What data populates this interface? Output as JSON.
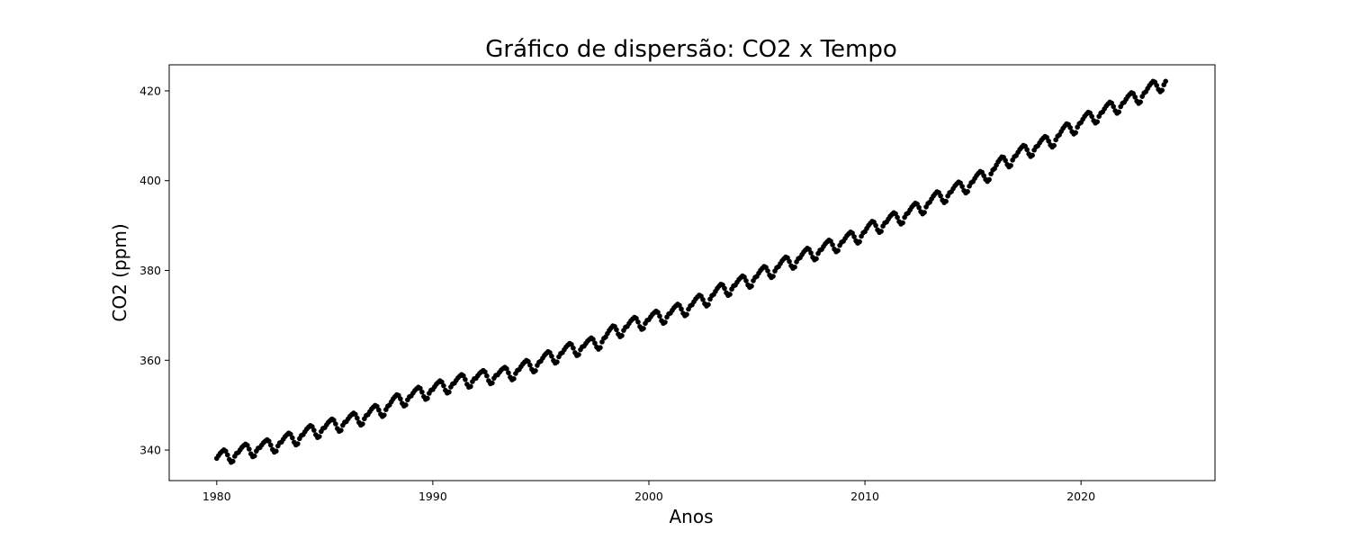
{
  "chart_data": {
    "type": "scatter",
    "title": "Gráfico de dispersão: CO2 x Tempo",
    "xlabel": "Anos",
    "ylabel": "CO2 (ppm)",
    "xlim": [
      1977.8,
      2026.2
    ],
    "ylim": [
      333.2,
      425.8
    ],
    "xticks": [
      1980,
      1990,
      2000,
      2010,
      2020
    ],
    "yticks": [
      340,
      360,
      380,
      400,
      420
    ],
    "grid": false,
    "marker_color": "#000000",
    "annual_means_ppm": [
      {
        "year": 1980,
        "co2": 338.8
      },
      {
        "year": 1981,
        "co2": 340.1
      },
      {
        "year": 1982,
        "co2": 341.0
      },
      {
        "year": 1983,
        "co2": 342.6
      },
      {
        "year": 1984,
        "co2": 344.3
      },
      {
        "year": 1985,
        "co2": 345.7
      },
      {
        "year": 1986,
        "co2": 347.0
      },
      {
        "year": 1987,
        "co2": 348.8
      },
      {
        "year": 1988,
        "co2": 351.3
      },
      {
        "year": 1989,
        "co2": 352.8
      },
      {
        "year": 1990,
        "co2": 354.2
      },
      {
        "year": 1991,
        "co2": 355.6
      },
      {
        "year": 1992,
        "co2": 356.4
      },
      {
        "year": 1993,
        "co2": 357.1
      },
      {
        "year": 1994,
        "co2": 358.8
      },
      {
        "year": 1995,
        "co2": 360.8
      },
      {
        "year": 1996,
        "co2": 362.6
      },
      {
        "year": 1997,
        "co2": 363.7
      },
      {
        "year": 1998,
        "co2": 366.7
      },
      {
        "year": 1999,
        "co2": 368.4
      },
      {
        "year": 2000,
        "co2": 369.7
      },
      {
        "year": 2001,
        "co2": 371.3
      },
      {
        "year": 2002,
        "co2": 373.4
      },
      {
        "year": 2003,
        "co2": 375.9
      },
      {
        "year": 2004,
        "co2": 377.6
      },
      {
        "year": 2005,
        "co2": 379.8
      },
      {
        "year": 2006,
        "co2": 381.9
      },
      {
        "year": 2007,
        "co2": 383.8
      },
      {
        "year": 2008,
        "co2": 385.6
      },
      {
        "year": 2009,
        "co2": 387.4
      },
      {
        "year": 2010,
        "co2": 389.9
      },
      {
        "year": 2011,
        "co2": 391.7
      },
      {
        "year": 2012,
        "co2": 393.9
      },
      {
        "year": 2013,
        "co2": 396.5
      },
      {
        "year": 2014,
        "co2": 398.6
      },
      {
        "year": 2015,
        "co2": 401.0
      },
      {
        "year": 2016,
        "co2": 404.4
      },
      {
        "year": 2017,
        "co2": 406.8
      },
      {
        "year": 2018,
        "co2": 408.7
      },
      {
        "year": 2019,
        "co2": 411.7
      },
      {
        "year": 2020,
        "co2": 414.2
      },
      {
        "year": 2021,
        "co2": 416.4
      },
      {
        "year": 2022,
        "co2": 418.5
      },
      {
        "year": 2023,
        "co2": 421.1
      }
    ],
    "seasonal_amplitude_ppm": 3.2
  }
}
